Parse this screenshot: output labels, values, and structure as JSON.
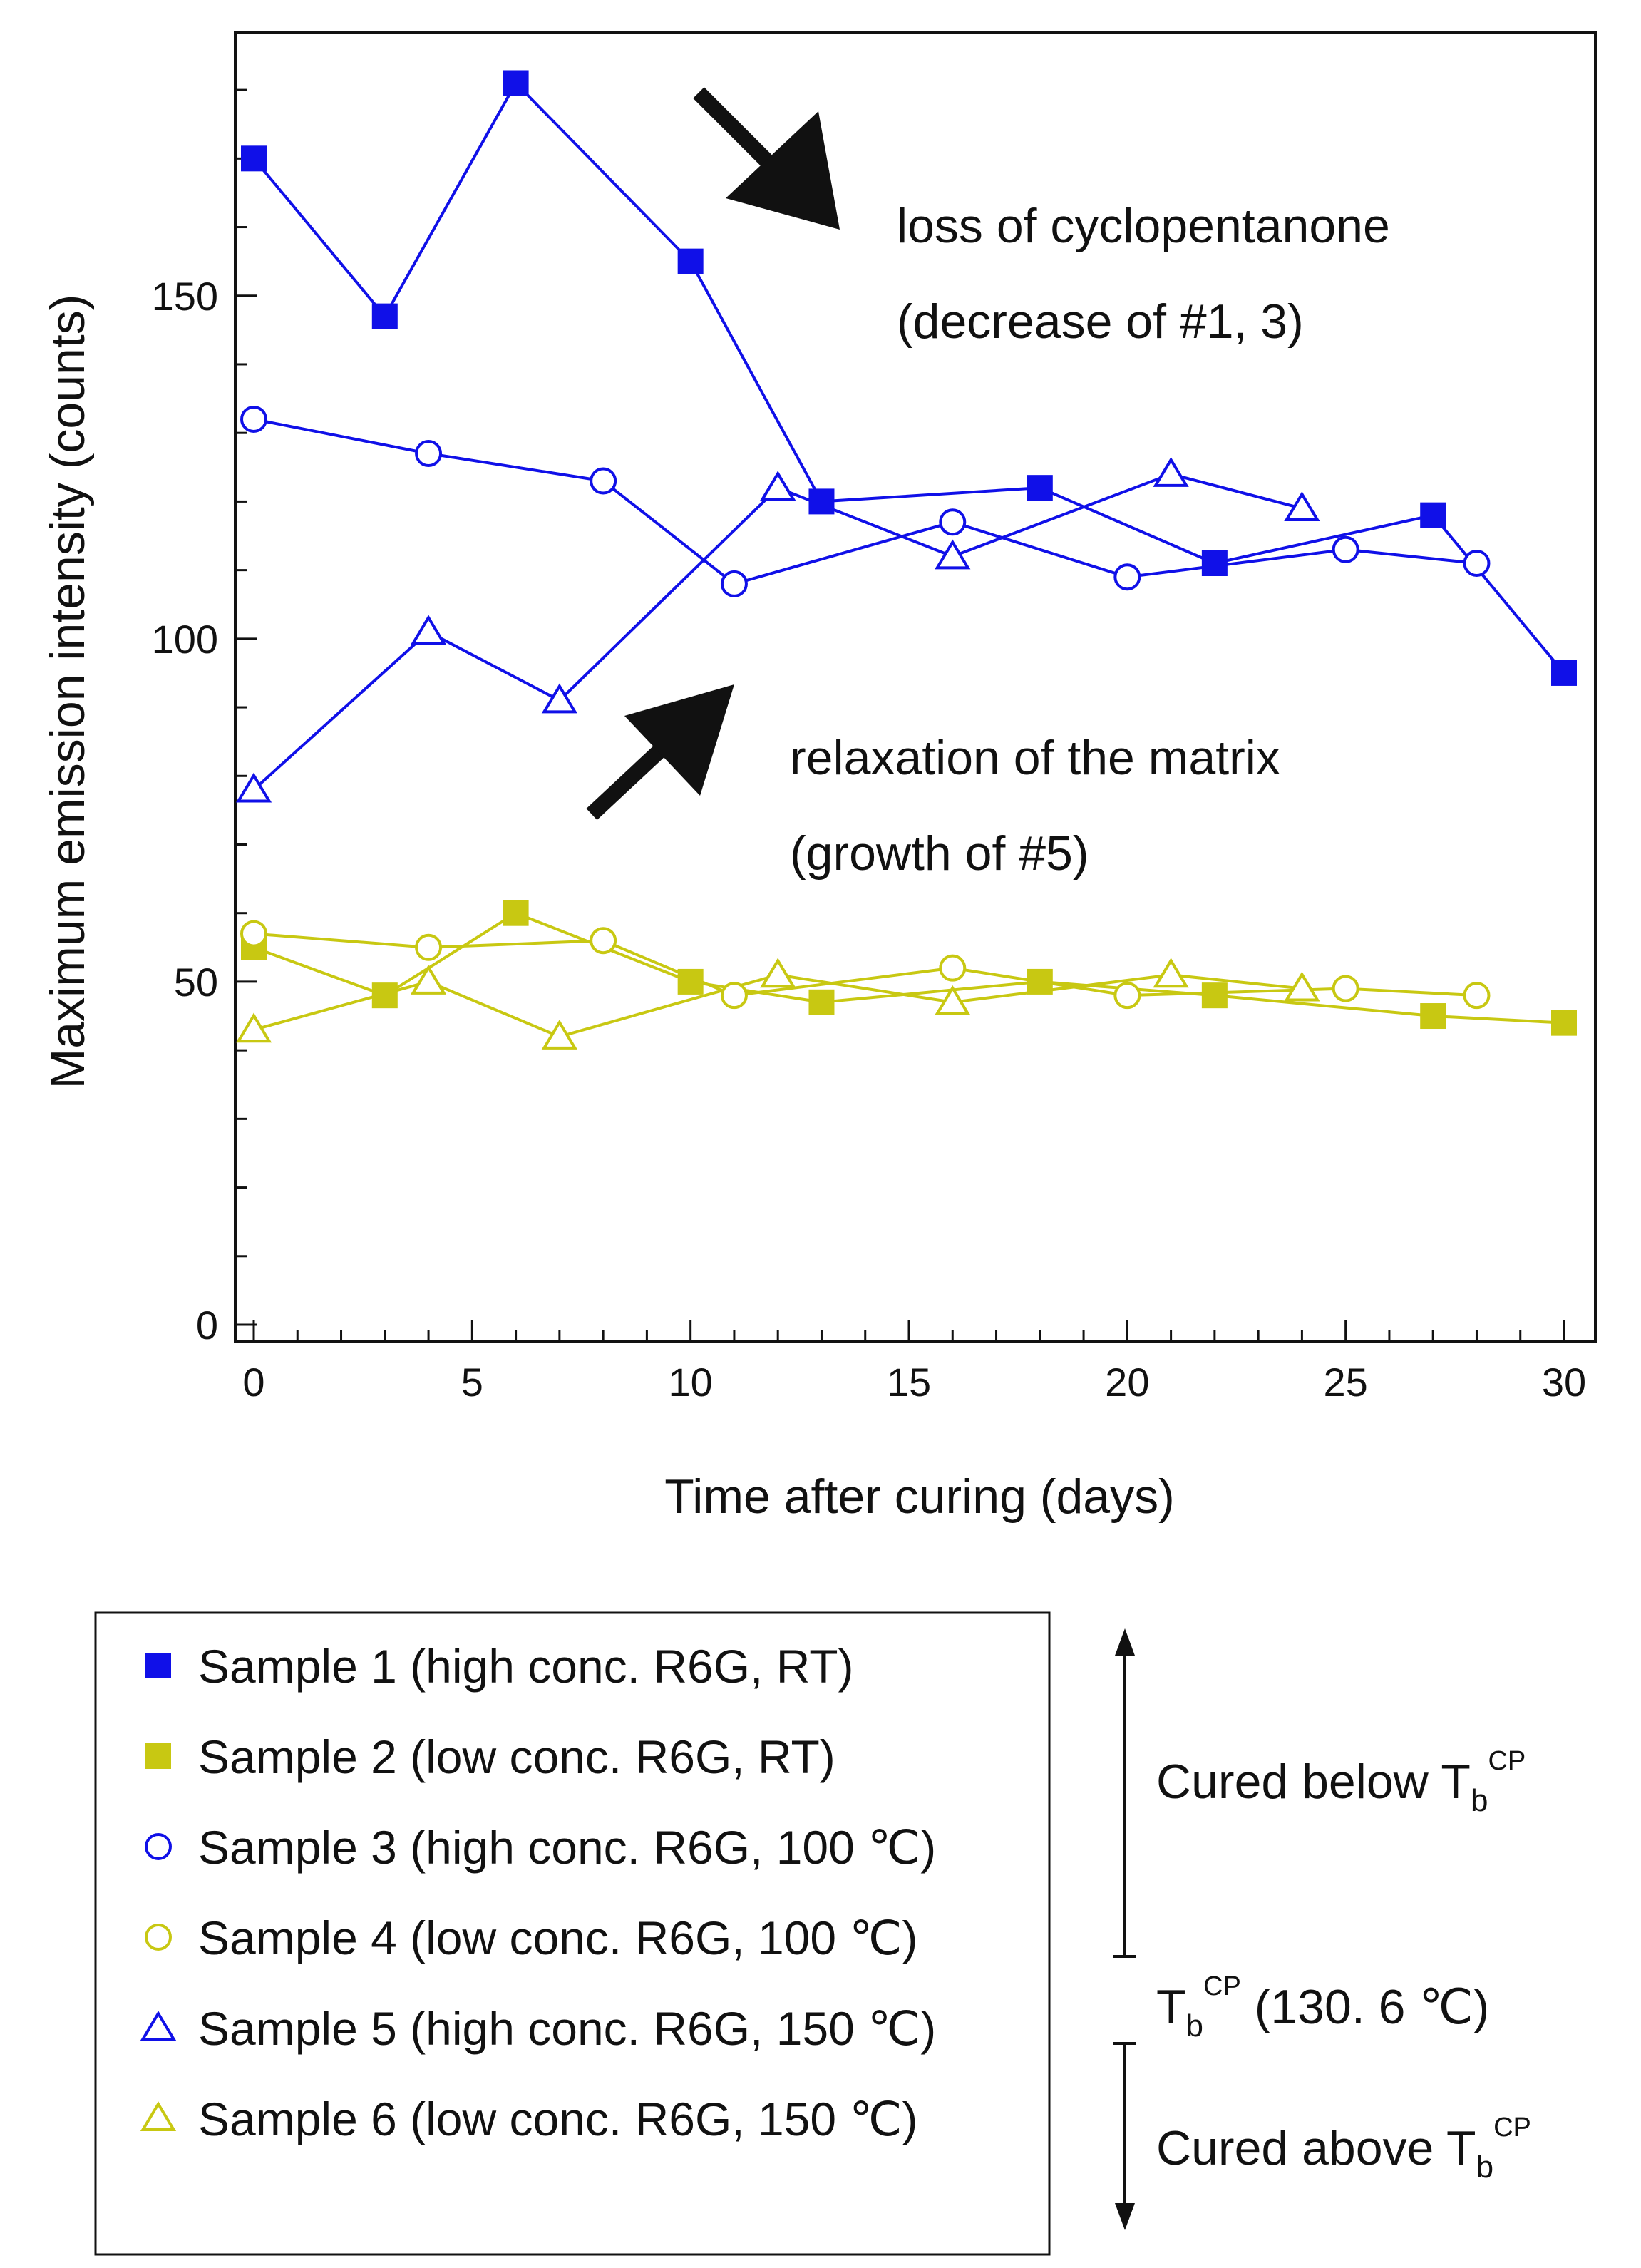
{
  "chart_data": {
    "type": "line",
    "xlabel": "Time after curing (days)",
    "ylabel": "Maximum emission intensity (counts)",
    "xlim": [
      0,
      30
    ],
    "ylim": [
      0,
      185
    ],
    "x_ticks": [
      "0",
      "5",
      "10",
      "15",
      "20",
      "25",
      "30"
    ],
    "y_ticks": [
      "0",
      "50",
      "100",
      "150"
    ],
    "grid": false,
    "legend_position": "below",
    "series": [
      {
        "name": "Sample 1 (high conc. R6G, RT)",
        "color": "#1010e8",
        "marker": "square-filled",
        "x": [
          0,
          3,
          6,
          10,
          13,
          18,
          22,
          27,
          30
        ],
        "y": [
          170,
          147,
          181,
          155,
          120,
          122,
          111,
          118,
          95
        ]
      },
      {
        "name": "Sample 2 (low conc. R6G, RT)",
        "color": "#c8c812",
        "marker": "square-filled",
        "x": [
          0,
          3,
          6,
          10,
          13,
          18,
          22,
          27,
          30
        ],
        "y": [
          55,
          48,
          60,
          50,
          47,
          50,
          48,
          45,
          44
        ]
      },
      {
        "name": "Sample 3 (high conc. R6G, 100 ℃)",
        "color": "#1010e8",
        "marker": "circle-open",
        "x": [
          0,
          4,
          8,
          11,
          16,
          20,
          25,
          28
        ],
        "y": [
          132,
          127,
          123,
          108,
          117,
          109,
          113,
          111
        ]
      },
      {
        "name": "Sample 4 (low conc. R6G, 100 ℃)",
        "color": "#c8c812",
        "marker": "circle-open",
        "x": [
          0,
          4,
          8,
          11,
          16,
          20,
          25,
          28
        ],
        "y": [
          57,
          55,
          56,
          48,
          52,
          48,
          49,
          48
        ]
      },
      {
        "name": "Sample 5 (high conc. R6G, 150 ℃)",
        "color": "#1010e8",
        "marker": "triangle-open",
        "x": [
          0,
          4,
          7,
          12,
          16,
          21,
          24
        ],
        "y": [
          78,
          101,
          91,
          122,
          112,
          124,
          119
        ]
      },
      {
        "name": "Sample 6 (low conc. R6G, 150 ℃)",
        "color": "#c8c812",
        "marker": "triangle-open",
        "x": [
          0,
          4,
          7,
          12,
          16,
          21,
          24
        ],
        "y": [
          43,
          50,
          42,
          51,
          47,
          51,
          49
        ]
      }
    ],
    "annotations": {
      "loss_line1": "loss of cyclopentanone",
      "loss_line2": "(decrease of #1, 3)",
      "relax_line1": "relaxation of the matrix",
      "relax_line2": "(growth of #5)"
    }
  },
  "side": {
    "below_prefix": "Cured below T",
    "tb_main": "T",
    "tb_suffix": " (130. 6 ℃)",
    "above_prefix": "Cured above T",
    "sub": "b",
    "sup": "CP"
  }
}
